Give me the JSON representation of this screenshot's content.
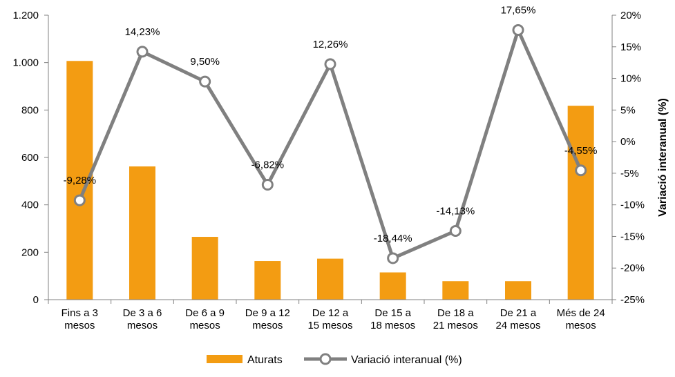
{
  "chart_data": {
    "type": "bar",
    "categories": [
      [
        "Fins a 3",
        "mesos"
      ],
      [
        "De 3 a 6",
        "mesos"
      ],
      [
        "De 6 a 9",
        "mesos"
      ],
      [
        "De 9 a 12",
        "mesos"
      ],
      [
        "De 12 a",
        "15 mesos"
      ],
      [
        "De 15 a",
        "18 mesos"
      ],
      [
        "De 18 a",
        "21 mesos"
      ],
      [
        "De 21 a",
        "24 mesos"
      ],
      [
        "Més de 24",
        "mesos"
      ]
    ],
    "series": [
      {
        "name": "Aturats",
        "type": "bar",
        "axis": "left",
        "color": "#F39C12",
        "values": [
          1007,
          562,
          265,
          163,
          173,
          115,
          78,
          78,
          818
        ]
      },
      {
        "name": "Variació interanual (%)",
        "type": "line",
        "axis": "right",
        "color": "#808080",
        "marker": "open-circle",
        "values": [
          -9.28,
          14.23,
          9.5,
          -6.82,
          12.26,
          -18.44,
          -14.13,
          17.65,
          -4.55
        ],
        "data_labels": [
          "-9,28%",
          "14,23%",
          "9,50%",
          "-6,82%",
          "12,26%",
          "-18,44%",
          "-14,13%",
          "17,65%",
          "-4,55%"
        ]
      }
    ],
    "y_left": {
      "ylim": [
        0,
        1200
      ],
      "ticks": [
        0,
        200,
        400,
        600,
        800,
        1000,
        1200
      ],
      "tick_labels": [
        "0",
        "200",
        "400",
        "600",
        "800",
        "1.000",
        "1.200"
      ],
      "label": ""
    },
    "y_right": {
      "ylim": [
        -25,
        20
      ],
      "ticks": [
        -25,
        -20,
        -15,
        -10,
        -5,
        0,
        5,
        10,
        15,
        20
      ],
      "tick_labels": [
        "-25%",
        "-20%",
        "-15%",
        "-10%",
        "-5%",
        "0%",
        "5%",
        "10%",
        "15%",
        "20%"
      ],
      "label": "Variació interanual (%)"
    },
    "grid": false,
    "legend_position": "bottom-center"
  }
}
